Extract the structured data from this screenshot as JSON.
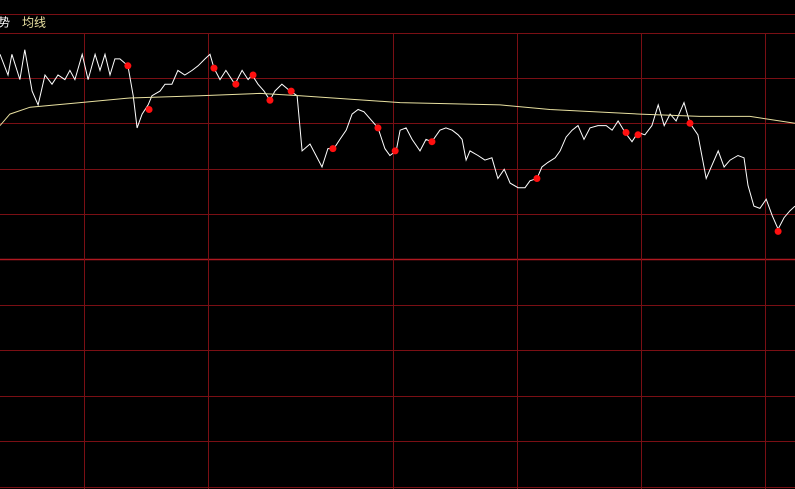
{
  "chart_data": {
    "type": "line",
    "xlim": [
      0,
      240
    ],
    "ylim": [
      -10,
      10
    ],
    "series": [
      {
        "name": "势",
        "color": "#ffffff",
        "x": [
          0,
          2.4,
          3.6,
          6,
          7.5,
          9.7,
          11.5,
          13.6,
          15.7,
          17.5,
          19.6,
          21.1,
          22.6,
          24.8,
          26.6,
          28.7,
          30.2,
          31.7,
          33.2,
          34.7,
          36.2,
          38.6,
          40.2,
          41.4,
          42.9,
          44.7,
          45.9,
          48.3,
          49.8,
          51.9,
          53.7,
          55.8,
          58,
          59.8,
          61.9,
          63.4,
          64.6,
          66.4,
          68.2,
          70.9,
          73.1,
          74.9,
          76.1,
          77.9,
          79.7,
          81.5,
          83,
          85.1,
          87.6,
          89.7,
          91.2,
          93.6,
          95.4,
          97.2,
          99,
          100.8,
          102.6,
          104.5,
          106.3,
          108.1,
          109.9,
          111.7,
          114.1,
          116.2,
          117.7,
          119.6,
          120.8,
          122.6,
          124.4,
          126.8,
          128.6,
          130.4,
          132.8,
          134.6,
          136.5,
          138.3,
          139.5,
          140.7,
          141.9,
          144.3,
          146.4,
          148.5,
          150.3,
          152.2,
          154,
          156.4,
          158.5,
          160,
          162.1,
          163.6,
          165.4,
          167.6,
          169.1,
          170.9,
          172.7,
          174.5,
          176.3,
          178.1,
          180.5,
          183,
          184.8,
          186.6,
          188.7,
          190.8,
          192.6,
          194.7,
          196.8,
          198.7,
          200.5,
          202.3,
          204.1,
          206.5,
          208.3,
          210.7,
          213.2,
          215,
          216.8,
          218.6,
          220.4,
          222.8,
          224.6,
          225.8,
          227.6,
          229.4,
          231.3,
          233.1,
          234.9,
          236.7,
          238.5,
          240
        ],
        "values": [
          8.9,
          8.0,
          8.9,
          7.8,
          9.1,
          7.3,
          6.7,
          8.0,
          7.6,
          8.0,
          7.8,
          8.2,
          7.8,
          8.9,
          7.8,
          8.9,
          8.2,
          8.9,
          8.0,
          8.7,
          8.7,
          8.4,
          7.1,
          5.7,
          6.3,
          6.7,
          7.1,
          7.3,
          7.6,
          7.6,
          8.2,
          8.0,
          8.2,
          8.4,
          8.7,
          8.9,
          8.3,
          7.8,
          8.2,
          7.6,
          8.2,
          7.8,
          8.0,
          7.6,
          7.3,
          6.9,
          7.3,
          7.6,
          7.3,
          7.1,
          4.7,
          5.0,
          4.5,
          4.0,
          4.8,
          4.8,
          5.2,
          5.6,
          6.3,
          6.5,
          6.4,
          6.1,
          5.7,
          4.8,
          4.5,
          4.7,
          5.6,
          5.7,
          5.2,
          4.7,
          5.2,
          5.1,
          5.6,
          5.7,
          5.6,
          5.4,
          5.2,
          4.3,
          4.7,
          4.5,
          4.3,
          4.4,
          3.5,
          3.9,
          3.3,
          3.1,
          3.1,
          3.4,
          3.5,
          4.0,
          4.2,
          4.4,
          4.7,
          5.3,
          5.6,
          5.8,
          5.2,
          5.7,
          5.8,
          5.8,
          5.6,
          6.0,
          5.5,
          5.1,
          5.5,
          5.4,
          5.8,
          6.7,
          5.8,
          6.3,
          6.0,
          6.8,
          5.9,
          5.4,
          3.5,
          4.1,
          4.7,
          4.0,
          4.3,
          4.5,
          4.4,
          3.2,
          2.3,
          2.2,
          2.6,
          1.9,
          1.3,
          1.8,
          2.1,
          2.3
        ]
      },
      {
        "name": "均线",
        "color": "#e8e0a0",
        "x": [
          0,
          3,
          9.1,
          24.2,
          39.2,
          60.4,
          78.5,
          90.6,
          120.8,
          151,
          166,
          193.2,
          211.3,
          226.4,
          240
        ],
        "values": [
          5.8,
          6.3,
          6.6,
          6.8,
          7.0,
          7.1,
          7.2,
          7.1,
          6.8,
          6.7,
          6.5,
          6.3,
          6.2,
          6.2,
          5.9
        ]
      }
    ],
    "markers": {
      "color": "#ff1010",
      "x": [
        38.6,
        45,
        64.6,
        71.2,
        76.4,
        81.5,
        87.9,
        100.5,
        114.1,
        119.3,
        130.4,
        162.1,
        189,
        192.6,
        208.3,
        234.9
      ],
      "values": [
        8.4,
        6.5,
        8.3,
        7.6,
        8.0,
        6.9,
        7.3,
        4.8,
        5.7,
        4.7,
        5.1,
        3.5,
        5.5,
        5.4,
        5.9,
        1.2
      ]
    }
  }
}
